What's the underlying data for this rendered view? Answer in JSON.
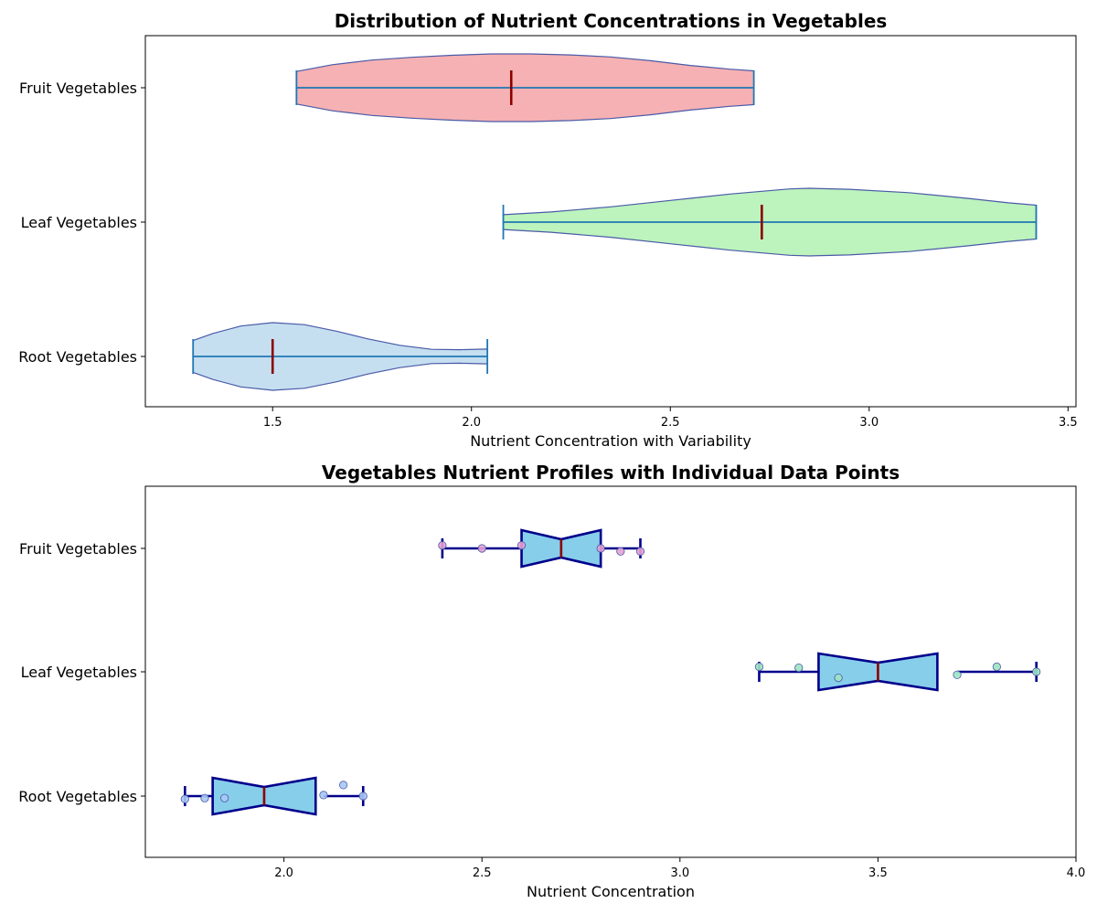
{
  "chart_data": [
    {
      "type": "violin",
      "title": "Distribution of Nutrient Concentrations in Vegetables",
      "xlabel": "Nutrient Concentration with Variability",
      "ylabel": "",
      "xlim": [
        1.18,
        3.52
      ],
      "xticks": [
        "1.5",
        "2.0",
        "2.5",
        "3.0",
        "3.5"
      ],
      "xtick_values": [
        1.5,
        2.0,
        2.5,
        3.0,
        3.5
      ],
      "categories": [
        "Root Vegetables",
        "Leaf Vegetables",
        "Fruit Vegetables"
      ],
      "series": [
        {
          "category": "Root Vegetables",
          "min": 1.3,
          "max": 2.04,
          "median": 1.5,
          "color": "#c5dff0",
          "density": [
            [
              1.3,
              0.47
            ],
            [
              1.35,
              0.68
            ],
            [
              1.42,
              0.9
            ],
            [
              1.5,
              1.0
            ],
            [
              1.58,
              0.94
            ],
            [
              1.66,
              0.75
            ],
            [
              1.74,
              0.52
            ],
            [
              1.82,
              0.33
            ],
            [
              1.9,
              0.21
            ],
            [
              1.97,
              0.2
            ],
            [
              2.04,
              0.22
            ]
          ]
        },
        {
          "category": "Leaf Vegetables",
          "min": 2.08,
          "max": 3.42,
          "median": 2.73,
          "color": "#bdf3bd",
          "density": [
            [
              2.08,
              0.22
            ],
            [
              2.2,
              0.3
            ],
            [
              2.35,
              0.45
            ],
            [
              2.5,
              0.64
            ],
            [
              2.65,
              0.83
            ],
            [
              2.8,
              0.98
            ],
            [
              2.85,
              1.0
            ],
            [
              2.95,
              0.97
            ],
            [
              3.1,
              0.87
            ],
            [
              3.25,
              0.7
            ],
            [
              3.35,
              0.57
            ],
            [
              3.42,
              0.5
            ]
          ]
        },
        {
          "category": "Fruit Vegetables",
          "min": 1.56,
          "max": 2.71,
          "median": 2.1,
          "color": "#f5b1b3",
          "density": [
            [
              1.56,
              0.48
            ],
            [
              1.65,
              0.68
            ],
            [
              1.75,
              0.82
            ],
            [
              1.85,
              0.9
            ],
            [
              1.95,
              0.96
            ],
            [
              2.05,
              1.0
            ],
            [
              2.15,
              1.0
            ],
            [
              2.25,
              0.97
            ],
            [
              2.35,
              0.91
            ],
            [
              2.45,
              0.8
            ],
            [
              2.55,
              0.66
            ],
            [
              2.65,
              0.55
            ],
            [
              2.71,
              0.5
            ]
          ]
        }
      ]
    },
    {
      "type": "boxplot",
      "title": "Vegetables Nutrient Profiles with Individual Data Points",
      "xlabel": "Nutrient Concentration",
      "ylabel": "",
      "xlim": [
        1.65,
        4.0
      ],
      "xticks": [
        "2.0",
        "2.5",
        "3.0",
        "3.5",
        "4.0"
      ],
      "xtick_values": [
        2.0,
        2.5,
        3.0,
        3.5,
        4.0
      ],
      "categories": [
        "Root Vegetables",
        "Leaf Vegetables",
        "Fruit Vegetables"
      ],
      "series": [
        {
          "category": "Root Vegetables",
          "whisker_low": 1.75,
          "q1": 1.85,
          "median": 1.95,
          "q3": 2.1,
          "whisker_high": 2.2,
          "notch_low": 1.82,
          "notch_high": 2.08,
          "points": [
            [
              1.75,
              -0.03
            ],
            [
              1.8,
              -0.02
            ],
            [
              1.85,
              -0.02
            ],
            [
              2.1,
              0.01
            ],
            [
              2.15,
              0.11
            ],
            [
              2.2,
              0.0
            ]
          ],
          "point_color": "#a9c8f5"
        },
        {
          "category": "Leaf Vegetables",
          "whisker_low": 3.2,
          "q1": 3.4,
          "median": 3.5,
          "q3": 3.7,
          "whisker_high": 3.9,
          "notch_low": 3.35,
          "notch_high": 3.65,
          "points": [
            [
              3.2,
              0.05
            ],
            [
              3.3,
              0.04
            ],
            [
              3.4,
              -0.06
            ],
            [
              3.7,
              -0.03
            ],
            [
              3.8,
              0.05
            ],
            [
              3.9,
              0.0
            ]
          ],
          "point_color": "#9de4c2"
        },
        {
          "category": "Fruit Vegetables",
          "whisker_low": 2.4,
          "q1": 2.6,
          "median": 2.7,
          "q3": 2.8,
          "whisker_high": 2.9,
          "notch_low": 2.6,
          "notch_high": 2.8,
          "points": [
            [
              2.4,
              0.03
            ],
            [
              2.5,
              0.0
            ],
            [
              2.6,
              0.03
            ],
            [
              2.8,
              0.0
            ],
            [
              2.85,
              -0.03
            ],
            [
              2.9,
              -0.03
            ]
          ],
          "point_color": "#e6a1d4"
        }
      ]
    }
  ],
  "colors": {
    "violin_edge": "#4a5aa8",
    "violin_line": "#1f77b4",
    "median": "#8b0000",
    "box_edge": "#00008b",
    "box_fill": "#87ceeb"
  }
}
